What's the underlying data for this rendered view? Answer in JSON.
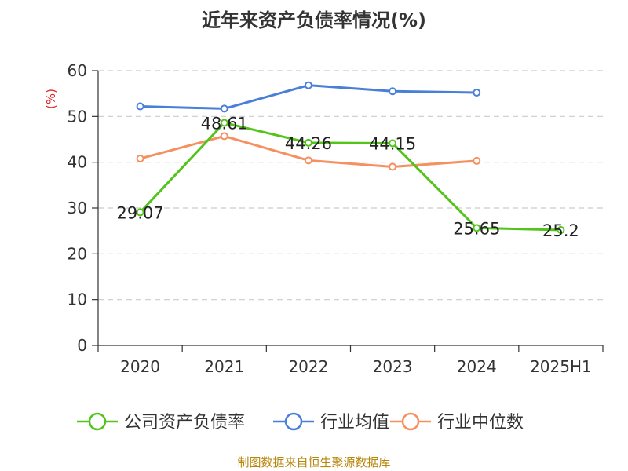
{
  "chart_data": {
    "type": "line",
    "title": "近年来资产负债率情况(%)",
    "ylabel": "(%)",
    "categories": [
      "2020",
      "2021",
      "2022",
      "2023",
      "2024",
      "2025H1"
    ],
    "ylim": [
      0,
      60
    ],
    "yticks": [
      0,
      10,
      20,
      30,
      40,
      50,
      60
    ],
    "grid": true,
    "legend_position": "bottom",
    "series": [
      {
        "name": "公司资产负债率",
        "color": "#52c41a",
        "values": [
          29.07,
          48.61,
          44.26,
          44.15,
          25.65,
          25.2
        ],
        "labels": [
          "29.07",
          "48.61",
          "44.26",
          "44.15",
          "25.65",
          "25.2"
        ]
      },
      {
        "name": "行业均值",
        "color": "#4a7fd8",
        "values": [
          52.2,
          51.7,
          56.8,
          55.5,
          55.2,
          null
        ]
      },
      {
        "name": "行业中位数",
        "color": "#f59161",
        "values": [
          40.8,
          45.7,
          40.4,
          39.0,
          40.3,
          null
        ]
      }
    ]
  },
  "unit_color": "#e02020",
  "source_text": "制图数据来自恒生聚源数据库",
  "source_color": "#b8860b"
}
